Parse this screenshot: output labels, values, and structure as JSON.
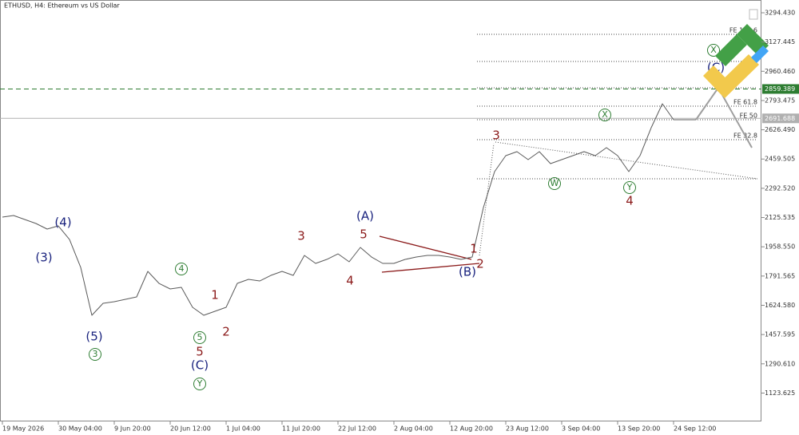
{
  "chart_data": {
    "type": "line",
    "title": "ETHUSD, H4:  Ethereum vs US Dollar",
    "categories": [
      "19 May 2026",
      null,
      null,
      null,
      null,
      "30 May 04:00",
      null,
      null,
      null,
      null,
      "9 Jun 20:00",
      null,
      null,
      null,
      null,
      "20 Jun 12:00",
      null,
      null,
      null,
      null,
      "1 Jul 04:00",
      null,
      null,
      null,
      null,
      "11 Jul 20:00",
      null,
      null,
      null,
      null,
      "22 Jul 12:00",
      null,
      null,
      null,
      null,
      "2 Aug 04:00",
      null,
      null,
      null,
      null,
      "12 Aug 20:00",
      null,
      null,
      null,
      null,
      "23 Aug 12:00",
      null,
      null,
      null,
      null,
      "3 Sep 04:00",
      null,
      null,
      null,
      null,
      "13 Sep 20:00",
      null,
      null,
      null,
      null,
      "24 Sep 12:00",
      null,
      null,
      null,
      null,
      null,
      null,
      null
    ],
    "series": [
      {
        "color": "#5a5a5a",
        "values": [
          2128.0,
          2137.1,
          2114.3,
          2091.6,
          2059.7,
          2077.9,
          2000.4,
          1841.0,
          1567.6,
          1635.9,
          1645.1,
          1658.7,
          1672.4,
          1818.2,
          1749.8,
          1718.0,
          1727.1,
          1613.2,
          1567.6,
          1590.4,
          1613.2,
          1749.8,
          1772.6,
          1763.5,
          1795.4,
          1818.2,
          1795.4,
          1909.3,
          1863.8,
          1886.5,
          1918.4,
          1872.9,
          1954.9,
          1900.2,
          1863.8,
          1863.8,
          1886.5,
          1900.2,
          1909.3,
          1909.3,
          1900.2,
          1886.5,
          1900.2,
          2182.7,
          2387.7,
          2478.8,
          2501.6,
          2456.1,
          2501.6,
          2433.3,
          2456.1,
          2478.8,
          2501.6,
          2478.8,
          2524.4,
          2478.8,
          2387.7,
          2478.8,
          2638.3,
          2775.0,
          2683.9,
          2683.9,
          2683.9,
          null,
          null,
          null,
          null,
          null
        ]
      },
      {
        "color": "#9e9e9e",
        "values": [
          null,
          null,
          null,
          null,
          null,
          null,
          null,
          null,
          null,
          null,
          null,
          null,
          null,
          null,
          null,
          null,
          null,
          null,
          null,
          null,
          null,
          null,
          null,
          null,
          null,
          null,
          null,
          null,
          null,
          null,
          null,
          null,
          null,
          null,
          null,
          null,
          null,
          null,
          null,
          null,
          null,
          null,
          null,
          null,
          null,
          null,
          null,
          null,
          null,
          null,
          null,
          null,
          null,
          null,
          null,
          null,
          null,
          null,
          null,
          null,
          null,
          null,
          2683.9,
          2775.0,
          2866.1,
          2752.0,
          2638.0,
          2524.4
        ]
      }
    ],
    "ylim": [
      961.7,
      3367.3
    ],
    "yticks": [
      {
        "value": 3294.43,
        "label": "3294.430"
      },
      {
        "value": 3127.445,
        "label": "3127.445"
      },
      {
        "value": 2960.46,
        "label": "2960.460"
      },
      {
        "value": 2793.475,
        "label": "2793.475"
      },
      {
        "value": 2626.49,
        "label": "2626.490"
      },
      {
        "value": 2459.505,
        "label": "2459.505"
      },
      {
        "value": 2292.52,
        "label": "2292.520"
      },
      {
        "value": 2125.535,
        "label": "2125.535"
      },
      {
        "value": 1958.55,
        "label": "1958.550"
      },
      {
        "value": 1791.565,
        "label": "1791.565"
      },
      {
        "value": 1624.58,
        "label": "1624.580"
      },
      {
        "value": 1457.595,
        "label": "1457.595"
      },
      {
        "value": 1290.61,
        "label": "1290.610"
      },
      {
        "value": 1123.625,
        "label": "1123.625"
      }
    ],
    "price_lines": [
      {
        "value": 2859.389,
        "color": "#2e7d32",
        "dashed": true
      },
      {
        "value": 2691.688,
        "color": "#b0b0b0",
        "dashed": false
      }
    ],
    "fib_levels": [
      {
        "value": 3171.4,
        "label": "FE 123.6"
      },
      {
        "value": 3016.5,
        "label": null
      },
      {
        "value": 2866.1,
        "label": null
      },
      {
        "value": 2761.4,
        "label": "FE 61.8"
      },
      {
        "value": 2683.9,
        "label": "FE 50"
      },
      {
        "value": 2570.0,
        "label": "FE 32.8"
      },
      {
        "value": 2346.7,
        "label": null
      }
    ],
    "annotations": [
      {
        "text": "(4)",
        "color": "#1a237e",
        "circled": false
      },
      {
        "text": "(3)",
        "color": "#1a237e",
        "circled": false
      },
      {
        "text": "(5)",
        "color": "#1a237e",
        "circled": false
      },
      {
        "text": "3",
        "color": "#2e7d32",
        "circled": true
      },
      {
        "text": "4",
        "color": "#2e7d32",
        "circled": true
      },
      {
        "text": "5",
        "color": "#2e7d32",
        "circled": true
      },
      {
        "text": "5",
        "color": "#8b1a1a",
        "circled": false
      },
      {
        "text": "(C)",
        "color": "#1a237e",
        "circled": false
      },
      {
        "text": "Y",
        "color": "#2e7d32",
        "circled": true
      },
      {
        "text": "1",
        "color": "#8b1a1a",
        "circled": false
      },
      {
        "text": "2",
        "color": "#8b1a1a",
        "circled": false
      },
      {
        "text": "3",
        "color": "#8b1a1a",
        "circled": false
      },
      {
        "text": "(A)",
        "color": "#1a237e",
        "circled": false
      },
      {
        "text": "5",
        "color": "#8b1a1a",
        "circled": false
      },
      {
        "text": "4",
        "color": "#8b1a1a",
        "circled": false
      },
      {
        "text": "1",
        "color": "#8b1a1a",
        "circled": false
      },
      {
        "text": "2",
        "color": "#8b1a1a",
        "circled": false
      },
      {
        "text": "(B)",
        "color": "#1a237e",
        "circled": false
      },
      {
        "text": "3",
        "color": "#8b1a1a",
        "circled": false
      },
      {
        "text": "W",
        "color": "#2e7d32",
        "circled": true
      },
      {
        "text": "X",
        "color": "#2e7d32",
        "circled": true
      },
      {
        "text": "Y",
        "color": "#2e7d32",
        "circled": true
      },
      {
        "text": "4",
        "color": "#8b1a1a",
        "circled": false
      },
      {
        "text": "X",
        "color": "#2e7d32",
        "circled": true
      },
      {
        "text": "(C)",
        "color": "#1a237e",
        "circled": false
      }
    ]
  }
}
